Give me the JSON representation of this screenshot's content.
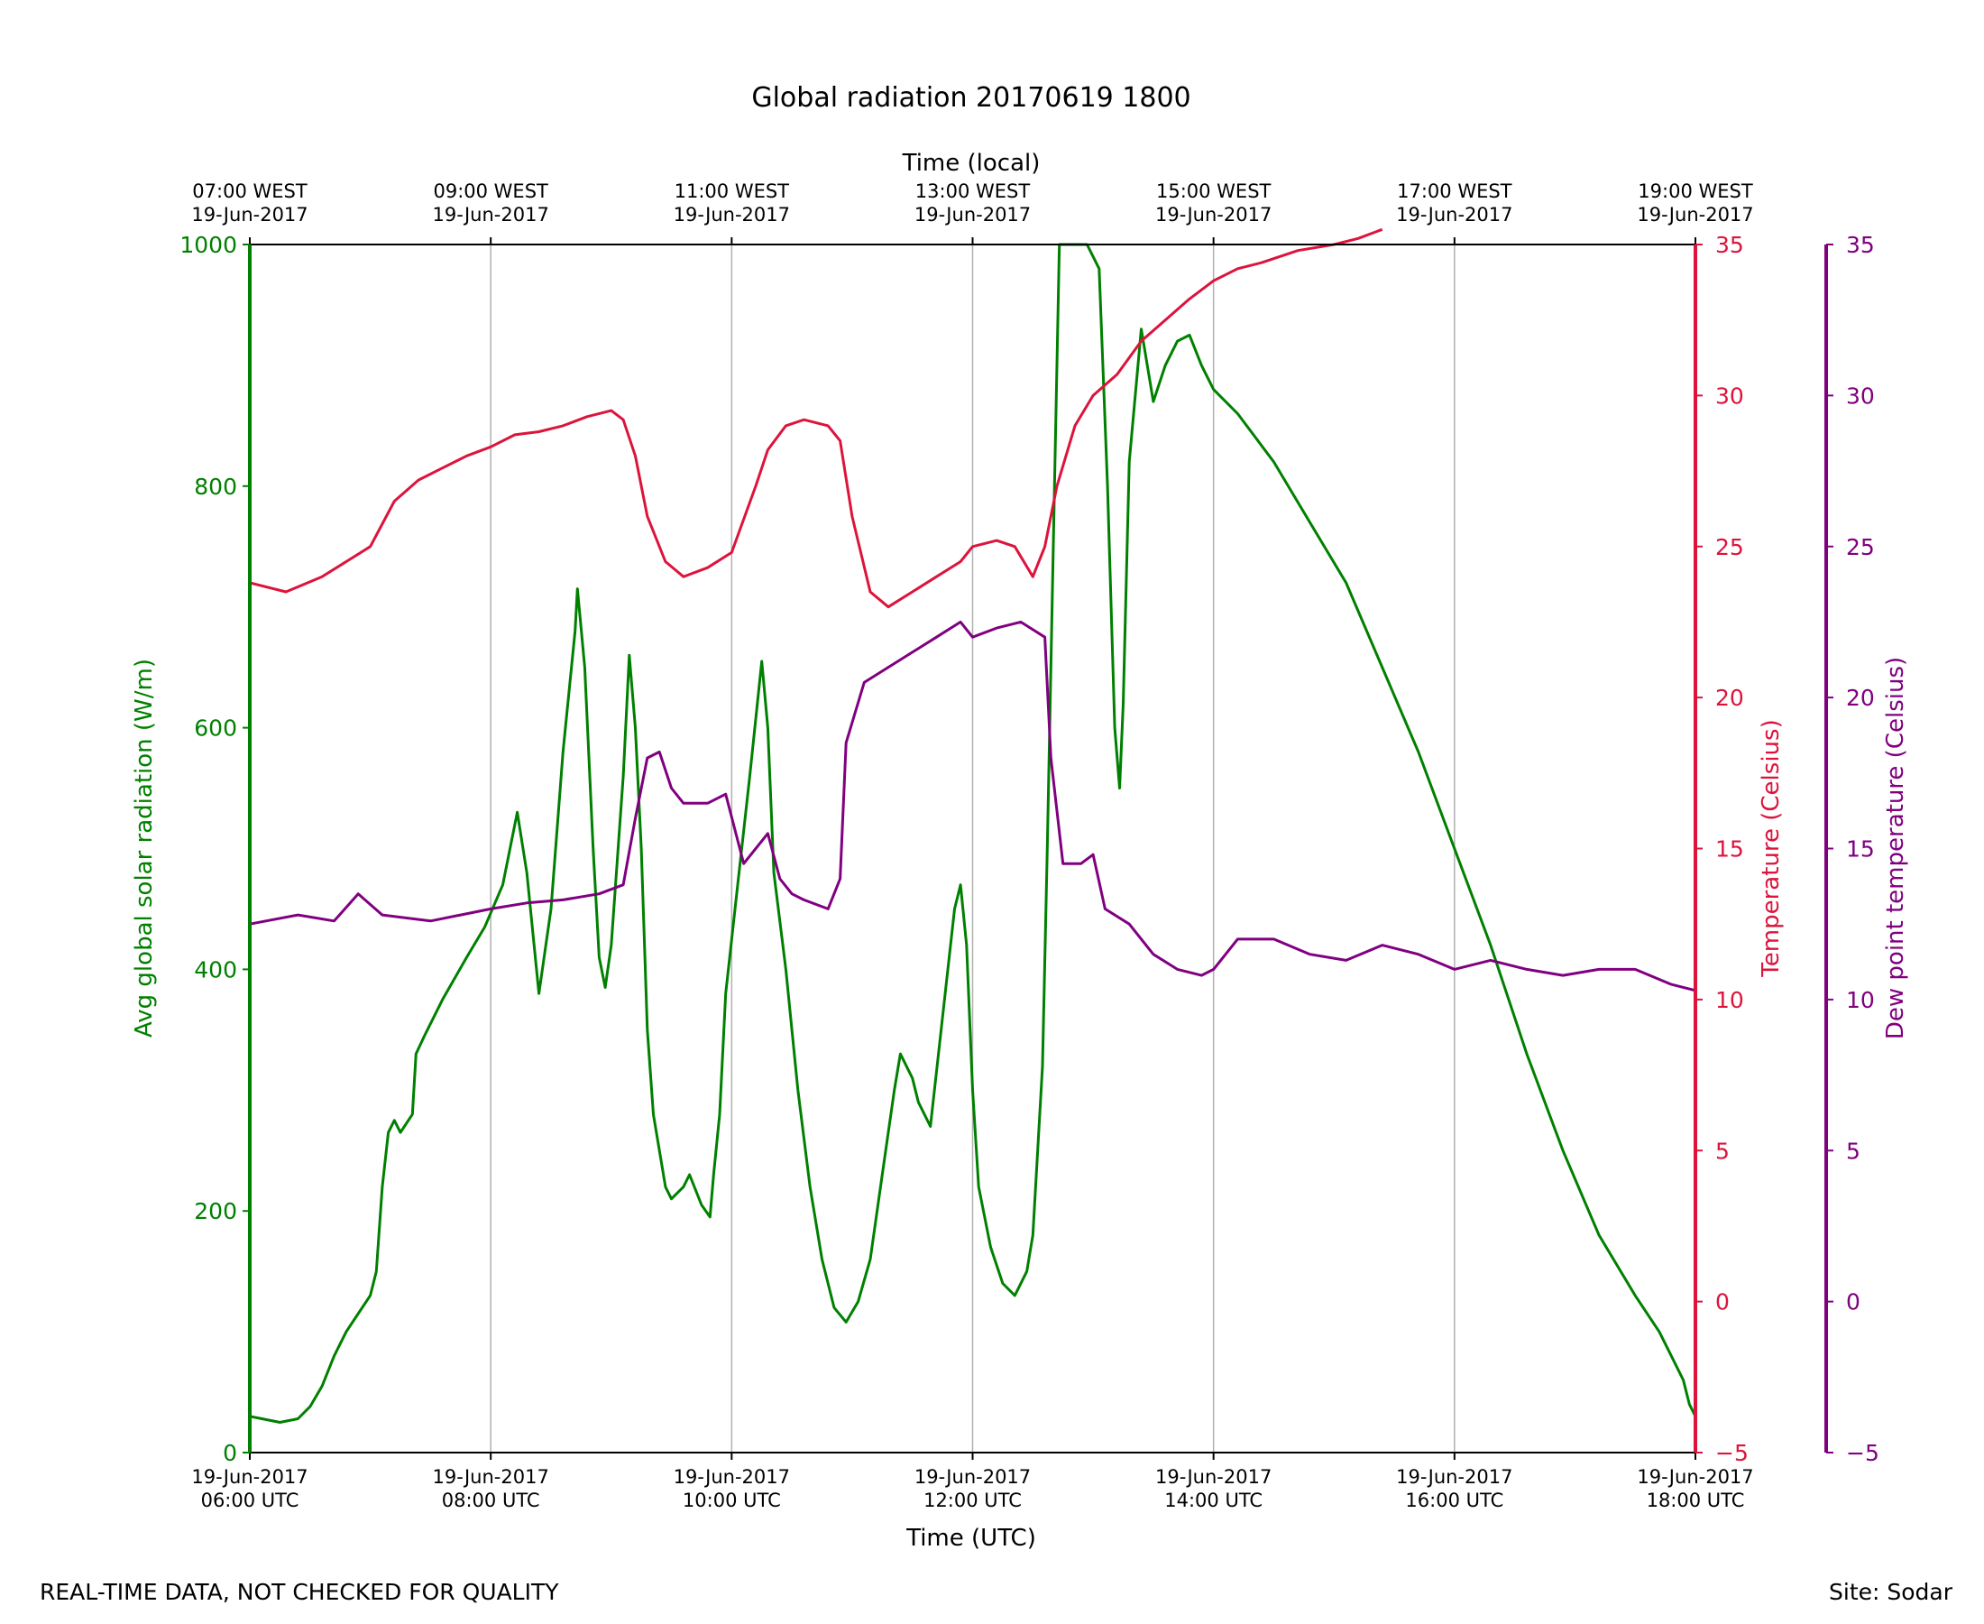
{
  "chart_data": {
    "type": "line",
    "title": "Global radiation 20170619 1800",
    "xlabel": "Time (UTC)",
    "top_xlabel": "Time (local)",
    "xlim": [
      6,
      18
    ],
    "x_ticks_bottom": [
      {
        "x": 6,
        "date": "19-Jun-2017",
        "time": "06:00 UTC"
      },
      {
        "x": 8,
        "date": "19-Jun-2017",
        "time": "08:00 UTC"
      },
      {
        "x": 10,
        "date": "19-Jun-2017",
        "time": "10:00 UTC"
      },
      {
        "x": 12,
        "date": "19-Jun-2017",
        "time": "12:00 UTC"
      },
      {
        "x": 14,
        "date": "19-Jun-2017",
        "time": "14:00 UTC"
      },
      {
        "x": 16,
        "date": "19-Jun-2017",
        "time": "16:00 UTC"
      },
      {
        "x": 18,
        "date": "19-Jun-2017",
        "time": "18:00 UTC"
      }
    ],
    "x_ticks_top": [
      {
        "x": 6,
        "time": "07:00 WEST",
        "date": "19-Jun-2017"
      },
      {
        "x": 8,
        "time": "09:00 WEST",
        "date": "19-Jun-2017"
      },
      {
        "x": 10,
        "time": "11:00 WEST",
        "date": "19-Jun-2017"
      },
      {
        "x": 12,
        "time": "13:00 WEST",
        "date": "19-Jun-2017"
      },
      {
        "x": 14,
        "time": "15:00 WEST",
        "date": "19-Jun-2017"
      },
      {
        "x": 16,
        "time": "17:00 WEST",
        "date": "19-Jun-2017"
      },
      {
        "x": 18,
        "time": "19:00 WEST",
        "date": "19-Jun-2017"
      }
    ],
    "grid": "vertical",
    "axes": {
      "radiation": {
        "label": "Avg global solar radiation (W/m)",
        "ylim": [
          0,
          1000
        ],
        "ticks": [
          "0",
          "200",
          "400",
          "600",
          "800",
          "1000"
        ],
        "color": "#008000"
      },
      "temperature": {
        "label": "Temperature (Celsius)",
        "ylim": [
          -5,
          35
        ],
        "ticks": [
          "−5",
          "0",
          "5",
          "10",
          "15",
          "20",
          "25",
          "30",
          "35"
        ],
        "color": "#dc143c"
      },
      "dewpoint": {
        "label": "Dew point temperature (Celsius)",
        "ylim": [
          -5,
          35
        ],
        "ticks": [
          "−5",
          "0",
          "5",
          "10",
          "15",
          "20",
          "25",
          "30",
          "35"
        ],
        "color": "#800080"
      }
    },
    "series": [
      {
        "name": "Avg global solar radiation",
        "axis": "radiation",
        "color": "#008000",
        "points": [
          [
            6.0,
            30
          ],
          [
            6.1,
            28
          ],
          [
            6.25,
            25
          ],
          [
            6.4,
            28
          ],
          [
            6.5,
            38
          ],
          [
            6.6,
            55
          ],
          [
            6.7,
            80
          ],
          [
            6.8,
            100
          ],
          [
            6.9,
            115
          ],
          [
            7.0,
            130
          ],
          [
            7.05,
            150
          ],
          [
            7.1,
            220
          ],
          [
            7.15,
            265
          ],
          [
            7.2,
            275
          ],
          [
            7.25,
            265
          ],
          [
            7.35,
            280
          ],
          [
            7.38,
            330
          ],
          [
            7.45,
            345
          ],
          [
            7.6,
            375
          ],
          [
            7.8,
            410
          ],
          [
            7.95,
            435
          ],
          [
            8.1,
            470
          ],
          [
            8.22,
            530
          ],
          [
            8.3,
            480
          ],
          [
            8.35,
            430
          ],
          [
            8.4,
            380
          ],
          [
            8.5,
            450
          ],
          [
            8.6,
            580
          ],
          [
            8.7,
            680
          ],
          [
            8.72,
            715
          ],
          [
            8.78,
            650
          ],
          [
            8.85,
            500
          ],
          [
            8.9,
            410
          ],
          [
            8.95,
            385
          ],
          [
            9.0,
            420
          ],
          [
            9.1,
            560
          ],
          [
            9.15,
            660
          ],
          [
            9.2,
            600
          ],
          [
            9.25,
            500
          ],
          [
            9.3,
            350
          ],
          [
            9.35,
            280
          ],
          [
            9.45,
            220
          ],
          [
            9.5,
            210
          ],
          [
            9.6,
            220
          ],
          [
            9.65,
            230
          ],
          [
            9.75,
            205
          ],
          [
            9.82,
            195
          ],
          [
            9.85,
            230
          ],
          [
            9.9,
            280
          ],
          [
            9.95,
            380
          ],
          [
            10.05,
            470
          ],
          [
            10.15,
            560
          ],
          [
            10.25,
            655
          ],
          [
            10.3,
            600
          ],
          [
            10.35,
            480
          ],
          [
            10.45,
            400
          ],
          [
            10.55,
            300
          ],
          [
            10.65,
            220
          ],
          [
            10.75,
            160
          ],
          [
            10.85,
            120
          ],
          [
            10.95,
            108
          ],
          [
            11.05,
            125
          ],
          [
            11.15,
            160
          ],
          [
            11.25,
            230
          ],
          [
            11.35,
            300
          ],
          [
            11.4,
            330
          ],
          [
            11.5,
            310
          ],
          [
            11.55,
            290
          ],
          [
            11.65,
            270
          ],
          [
            11.75,
            360
          ],
          [
            11.85,
            450
          ],
          [
            11.9,
            470
          ],
          [
            11.95,
            420
          ],
          [
            12.0,
            300
          ],
          [
            12.05,
            220
          ],
          [
            12.15,
            170
          ],
          [
            12.25,
            140
          ],
          [
            12.35,
            130
          ],
          [
            12.45,
            150
          ],
          [
            12.5,
            180
          ],
          [
            12.58,
            320
          ],
          [
            12.62,
            500
          ],
          [
            12.68,
            800
          ],
          [
            12.72,
            1000
          ],
          [
            12.95,
            1000
          ],
          [
            13.05,
            980
          ],
          [
            13.12,
            800
          ],
          [
            13.18,
            600
          ],
          [
            13.22,
            550
          ],
          [
            13.25,
            620
          ],
          [
            13.3,
            820
          ],
          [
            13.4,
            930
          ],
          [
            13.5,
            870
          ],
          [
            13.6,
            900
          ],
          [
            13.7,
            920
          ],
          [
            13.8,
            925
          ],
          [
            13.9,
            900
          ],
          [
            14.0,
            880
          ],
          [
            14.2,
            860
          ],
          [
            14.5,
            820
          ],
          [
            14.8,
            770
          ],
          [
            15.1,
            720
          ],
          [
            15.4,
            650
          ],
          [
            15.7,
            580
          ],
          [
            16.0,
            500
          ],
          [
            16.3,
            420
          ],
          [
            16.6,
            330
          ],
          [
            16.9,
            250
          ],
          [
            17.2,
            180
          ],
          [
            17.5,
            130
          ],
          [
            17.7,
            100
          ],
          [
            17.8,
            80
          ],
          [
            17.9,
            60
          ],
          [
            17.95,
            40
          ],
          [
            18.0,
            30
          ]
        ]
      },
      {
        "name": "Temperature",
        "axis": "temperature",
        "color": "#dc143c",
        "points": [
          [
            6.0,
            23.8
          ],
          [
            6.3,
            23.5
          ],
          [
            6.6,
            24.0
          ],
          [
            6.8,
            24.5
          ],
          [
            7.0,
            25.0
          ],
          [
            7.2,
            26.5
          ],
          [
            7.4,
            27.2
          ],
          [
            7.6,
            27.6
          ],
          [
            7.8,
            28.0
          ],
          [
            8.0,
            28.3
          ],
          [
            8.2,
            28.7
          ],
          [
            8.4,
            28.8
          ],
          [
            8.6,
            29.0
          ],
          [
            8.8,
            29.3
          ],
          [
            9.0,
            29.5
          ],
          [
            9.1,
            29.2
          ],
          [
            9.2,
            28.0
          ],
          [
            9.3,
            26.0
          ],
          [
            9.45,
            24.5
          ],
          [
            9.6,
            24.0
          ],
          [
            9.8,
            24.3
          ],
          [
            10.0,
            24.8
          ],
          [
            10.2,
            27.0
          ],
          [
            10.3,
            28.2
          ],
          [
            10.45,
            29.0
          ],
          [
            10.6,
            29.2
          ],
          [
            10.8,
            29.0
          ],
          [
            10.9,
            28.5
          ],
          [
            11.0,
            26.0
          ],
          [
            11.15,
            23.5
          ],
          [
            11.3,
            23.0
          ],
          [
            11.5,
            23.5
          ],
          [
            11.7,
            24.0
          ],
          [
            11.9,
            24.5
          ],
          [
            12.0,
            25.0
          ],
          [
            12.2,
            25.2
          ],
          [
            12.35,
            25.0
          ],
          [
            12.5,
            24.0
          ],
          [
            12.6,
            25.0
          ],
          [
            12.7,
            27.0
          ],
          [
            12.85,
            29.0
          ],
          [
            13.0,
            30.0
          ],
          [
            13.2,
            30.7
          ],
          [
            13.4,
            31.8
          ],
          [
            13.6,
            32.5
          ],
          [
            13.8,
            33.2
          ],
          [
            14.0,
            33.8
          ],
          [
            14.2,
            34.2
          ],
          [
            14.4,
            34.4
          ],
          [
            14.7,
            34.8
          ],
          [
            15.0,
            35.0
          ],
          [
            15.2,
            35.2
          ],
          [
            15.4,
            35.5
          ]
        ]
      },
      {
        "name": "Dew point temperature",
        "axis": "dewpoint",
        "color": "#800080",
        "points": [
          [
            6.0,
            12.5
          ],
          [
            6.4,
            12.8
          ],
          [
            6.7,
            12.6
          ],
          [
            6.9,
            13.5
          ],
          [
            7.1,
            12.8
          ],
          [
            7.5,
            12.6
          ],
          [
            8.0,
            13.0
          ],
          [
            8.3,
            13.2
          ],
          [
            8.6,
            13.3
          ],
          [
            8.9,
            13.5
          ],
          [
            9.1,
            13.8
          ],
          [
            9.2,
            16.0
          ],
          [
            9.3,
            18.0
          ],
          [
            9.4,
            18.2
          ],
          [
            9.5,
            17.0
          ],
          [
            9.6,
            16.5
          ],
          [
            9.8,
            16.5
          ],
          [
            9.95,
            16.8
          ],
          [
            10.1,
            14.5
          ],
          [
            10.3,
            15.5
          ],
          [
            10.4,
            14.0
          ],
          [
            10.5,
            13.5
          ],
          [
            10.6,
            13.3
          ],
          [
            10.8,
            13.0
          ],
          [
            10.9,
            14.0
          ],
          [
            10.95,
            18.5
          ],
          [
            11.1,
            20.5
          ],
          [
            11.3,
            21.0
          ],
          [
            11.5,
            21.5
          ],
          [
            11.7,
            22.0
          ],
          [
            11.9,
            22.5
          ],
          [
            12.0,
            22.0
          ],
          [
            12.2,
            22.3
          ],
          [
            12.4,
            22.5
          ],
          [
            12.6,
            22.0
          ],
          [
            12.65,
            18.0
          ],
          [
            12.75,
            14.5
          ],
          [
            12.9,
            14.5
          ],
          [
            13.0,
            14.8
          ],
          [
            13.1,
            13.0
          ],
          [
            13.3,
            12.5
          ],
          [
            13.5,
            11.5
          ],
          [
            13.7,
            11.0
          ],
          [
            13.9,
            10.8
          ],
          [
            14.0,
            11.0
          ],
          [
            14.2,
            12.0
          ],
          [
            14.5,
            12.0
          ],
          [
            14.8,
            11.5
          ],
          [
            15.1,
            11.3
          ],
          [
            15.4,
            11.8
          ],
          [
            15.7,
            11.5
          ],
          [
            16.0,
            11.0
          ],
          [
            16.3,
            11.3
          ],
          [
            16.6,
            11.0
          ],
          [
            16.9,
            10.8
          ],
          [
            17.2,
            11.0
          ],
          [
            17.5,
            11.0
          ],
          [
            17.8,
            10.5
          ],
          [
            18.0,
            10.3
          ]
        ]
      }
    ],
    "footer_left": "REAL-TIME DATA, NOT CHECKED FOR QUALITY",
    "footer_right": "Site: Sodar"
  }
}
